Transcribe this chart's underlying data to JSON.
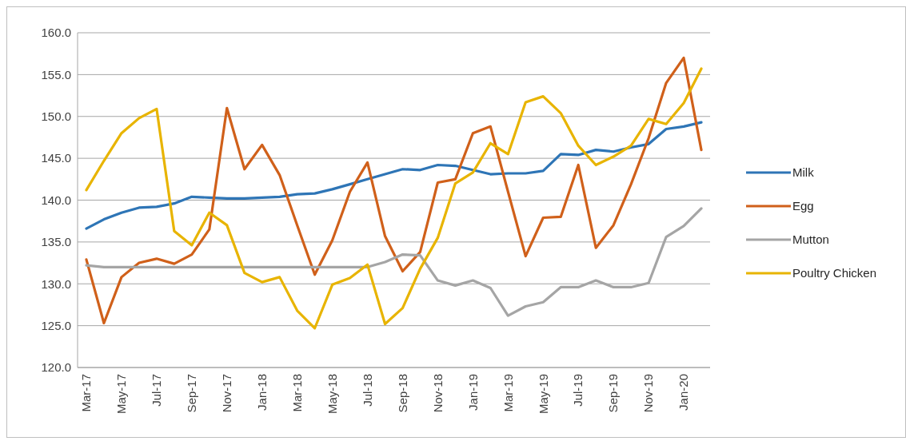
{
  "chart_data": {
    "type": "line",
    "categories": [
      "Mar-17",
      null,
      "May-17",
      null,
      "Jul-17",
      null,
      "Sep-17",
      null,
      "Nov-17",
      null,
      "Jan-18",
      null,
      "Mar-18",
      null,
      "May-18",
      null,
      "Jul-18",
      null,
      "Sep-18",
      null,
      "Nov-18",
      null,
      "Jan-19",
      null,
      "Mar-19",
      null,
      "May-19",
      null,
      "Jul-19",
      null,
      "Sep-19",
      null,
      "Nov-19",
      null,
      "Jan-20",
      null
    ],
    "series": [
      {
        "name": "Milk",
        "color": "#2e75b6",
        "values": [
          136.6,
          137.7,
          138.5,
          139.1,
          139.2,
          139.6,
          140.4,
          140.3,
          140.2,
          140.2,
          140.3,
          140.4,
          140.7,
          140.8,
          141.3,
          141.9,
          142.5,
          143.1,
          143.7,
          143.6,
          144.2,
          144.1,
          143.6,
          143.1,
          143.2,
          143.2,
          143.5,
          145.5,
          145.4,
          146.0,
          145.8,
          146.3,
          146.7,
          148.5,
          148.8,
          149.3
        ]
      },
      {
        "name": "Egg",
        "color": "#d0601a",
        "values": [
          132.9,
          125.3,
          130.8,
          132.5,
          133.0,
          132.4,
          133.5,
          136.5,
          151.0,
          143.7,
          146.6,
          143.0,
          137.0,
          131.1,
          135.2,
          141.0,
          144.5,
          135.7,
          131.5,
          133.8,
          142.1,
          142.5,
          148.0,
          148.8,
          141.0,
          133.3,
          137.9,
          138.0,
          144.2,
          134.3,
          137.0,
          141.9,
          147.4,
          154.0,
          157.0,
          146.0
        ]
      },
      {
        "name": "Mutton",
        "color": "#a5a5a5",
        "values": [
          132.2,
          132.0,
          132.0,
          132.0,
          132.0,
          132.0,
          132.0,
          132.0,
          132.0,
          132.0,
          132.0,
          132.0,
          132.0,
          132.0,
          132.0,
          132.0,
          132.0,
          132.6,
          133.5,
          133.4,
          130.4,
          129.8,
          130.4,
          129.5,
          126.2,
          127.3,
          127.8,
          129.6,
          129.6,
          130.4,
          129.6,
          129.6,
          130.1,
          135.6,
          136.9,
          139.0
        ]
      },
      {
        "name": "Poultry Chicken",
        "color": "#e8b400",
        "values": [
          141.2,
          144.7,
          148.0,
          149.8,
          150.9,
          136.3,
          134.6,
          138.5,
          137.0,
          131.3,
          130.2,
          130.8,
          126.8,
          124.7,
          129.9,
          130.7,
          132.3,
          125.2,
          127.1,
          131.8,
          135.5,
          142.0,
          143.3,
          146.8,
          145.5,
          151.7,
          152.4,
          150.4,
          146.5,
          144.2,
          145.2,
          146.5,
          149.7,
          149.1,
          151.6,
          155.7
        ]
      }
    ],
    "ylim": [
      120,
      160
    ],
    "yticks": [
      {
        "value": 120,
        "label": "120.0"
      },
      {
        "value": 125,
        "label": "125.0"
      },
      {
        "value": 130,
        "label": "130.0"
      },
      {
        "value": 135,
        "label": "135.0"
      },
      {
        "value": 140,
        "label": "140.0"
      },
      {
        "value": 145,
        "label": "145.0"
      },
      {
        "value": 150,
        "label": "150.0"
      },
      {
        "value": 155,
        "label": "155.0"
      },
      {
        "value": 160,
        "label": "160.0"
      }
    ],
    "grid": "y",
    "legend": "right",
    "marker": "none",
    "line_style": "solid"
  }
}
